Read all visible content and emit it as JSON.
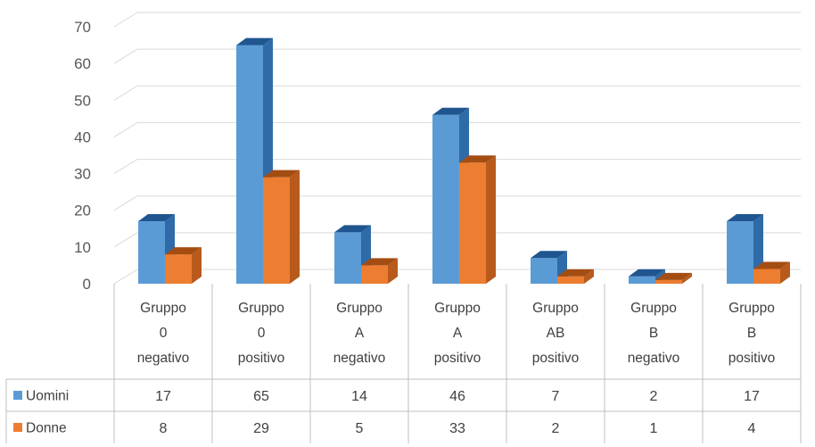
{
  "chart_data": {
    "type": "bar",
    "title": "",
    "xlabel": "",
    "ylabel": "",
    "ylim": [
      0,
      70
    ],
    "y_ticks": [
      0,
      10,
      20,
      30,
      40,
      50,
      60,
      70
    ],
    "grid": true,
    "style": "3d-clustered-column-with-data-table",
    "categories": [
      [
        "Gruppo",
        "0",
        "negativo"
      ],
      [
        "Gruppo",
        "0",
        "positivo"
      ],
      [
        "Gruppo",
        "A",
        "negativo"
      ],
      [
        "Gruppo",
        "A",
        "positivo"
      ],
      [
        "Gruppo",
        "AB",
        "positivo"
      ],
      [
        "Gruppo",
        "B",
        "negativo"
      ],
      [
        "Gruppo",
        "B",
        "positivo"
      ]
    ],
    "series": [
      {
        "name": "Uomini",
        "values": [
          17,
          65,
          14,
          46,
          7,
          2,
          17
        ],
        "color": "#5b9bd5",
        "side_color": "#2e6ba8",
        "top_color": "#1f5690"
      },
      {
        "name": "Donne",
        "values": [
          8,
          29,
          5,
          33,
          2,
          1,
          4
        ],
        "color": "#ed7d31",
        "side_color": "#b85a1b",
        "top_color": "#a44d12"
      }
    ]
  }
}
